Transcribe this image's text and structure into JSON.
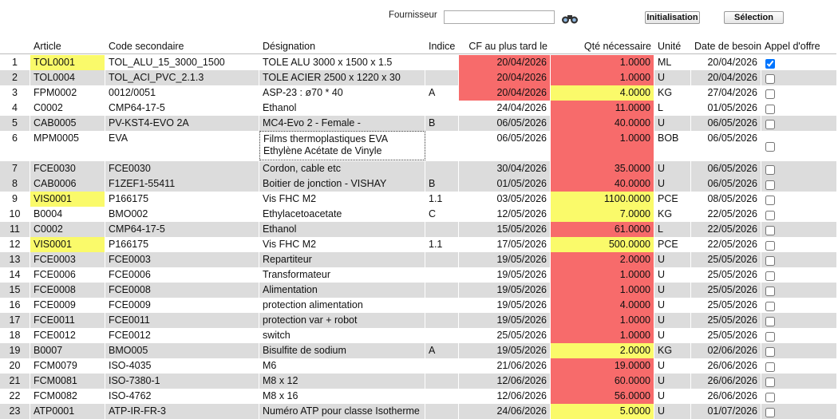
{
  "toolbar": {
    "supplier_label": "Fournisseur",
    "buttons": [
      "Initialisation",
      "Sélection"
    ]
  },
  "table": {
    "columns": [
      "Article",
      "Code secondaire",
      "Désignation",
      "Indice",
      "CF au plus tard le",
      "Qté nécessaire",
      "Unité",
      "Date de besoin",
      "Appel d'offre"
    ],
    "rows": [
      [
        "1",
        "TOL0001",
        "TOL_ALU_15_3000_1500",
        "TOLE ALU 3000 x 1500 x 1.5",
        null,
        "20/04/2026",
        "1.0000",
        "ML",
        "20/04/2026"
      ],
      [
        "2",
        "TOL0004",
        "TOL_ACI_PVC_2.1.3",
        "TOLE ACIER 2500 x 1220 x 30",
        null,
        "20/04/2026",
        "1.0000",
        "U",
        "20/04/2026"
      ],
      [
        "3",
        "FPM0002",
        "0012/0051",
        "ASP-23 : ø70 * 40",
        "A",
        "20/04/2026",
        "4.0000",
        "KG",
        "27/04/2026"
      ],
      [
        "4",
        "C0002",
        "CMP64-17-5",
        "Ethanol",
        null,
        "24/04/2026",
        "11.0000",
        "L",
        "01/05/2026"
      ],
      [
        "5",
        "CAB0005",
        "PV-KST4-EVO 2A",
        "MC4-Evo 2 - Female -",
        "B",
        "06/05/2026",
        "40.0000",
        "U",
        "06/05/2026"
      ],
      [
        "6",
        "MPM0005",
        "EVA",
        "Films thermoplastiques EVA\nEthylène Acétate de Vinyle",
        null,
        "06/05/2026",
        "1.0000",
        "BOB",
        "06/05/2026"
      ],
      [
        "7",
        "FCE0030",
        "FCE0030",
        "Cordon, cable etc",
        null,
        "30/04/2026",
        "35.0000",
        "U",
        "06/05/2026"
      ],
      [
        "8",
        "CAB0006",
        "F1ZEF1-55411",
        "Boitier de jonction - VISHAY",
        "B",
        "01/05/2026",
        "40.0000",
        "U",
        "06/05/2026"
      ],
      [
        "9",
        "VIS0001",
        "P166175",
        "Vis FHC M2",
        "1.1",
        "03/05/2026",
        "1100.0000",
        "PCE",
        "08/05/2026"
      ],
      [
        "10",
        "B0004",
        "BMO002",
        "Ethylacetoacetate",
        "C",
        "12/05/2026",
        "7.0000",
        "KG",
        "22/05/2026"
      ],
      [
        "11",
        "C0002",
        "CMP64-17-5",
        "Ethanol",
        null,
        "15/05/2026",
        "61.0000",
        "L",
        "22/05/2026"
      ],
      [
        "12",
        "VIS0001",
        "P166175",
        "Vis FHC M2",
        "1.1",
        "17/05/2026",
        "500.0000",
        "PCE",
        "22/05/2026"
      ],
      [
        "13",
        "FCE0003",
        "FCE0003",
        "Repartiteur",
        null,
        "19/05/2026",
        "2.0000",
        "U",
        "25/05/2026"
      ],
      [
        "14",
        "FCE0006",
        "FCE0006",
        "Transformateur",
        null,
        "19/05/2026",
        "1.0000",
        "U",
        "25/05/2026"
      ],
      [
        "15",
        "FCE0008",
        "FCE0008",
        "Alimentation",
        null,
        "19/05/2026",
        "1.0000",
        "U",
        "25/05/2026"
      ],
      [
        "16",
        "FCE0009",
        "FCE0009",
        "protection alimentation",
        null,
        "19/05/2026",
        "4.0000",
        "U",
        "25/05/2026"
      ],
      [
        "17",
        "FCE0011",
        "FCE0011",
        "protection var + robot",
        null,
        "19/05/2026",
        "1.0000",
        "U",
        "25/05/2026"
      ],
      [
        "18",
        "FCE0012",
        "FCE0012",
        "switch",
        null,
        "25/05/2026",
        "1.0000",
        "U",
        "25/05/2026"
      ],
      [
        "19",
        "B0007",
        "BMO005",
        "Bisulfite de sodium",
        "A",
        "19/05/2026",
        "2.0000",
        "KG",
        "02/06/2026"
      ],
      [
        "20",
        "FCM0079",
        "ISO-4035",
        "M6",
        null,
        "21/06/2026",
        "19.0000",
        "U",
        "26/06/2026"
      ],
      [
        "21",
        "FCM0081",
        "ISO-7380-1",
        "M8 x 12",
        null,
        "12/06/2026",
        "60.0000",
        "U",
        "26/06/2026"
      ],
      [
        "22",
        "FCM0082",
        "ISO-4762",
        "M8 x 16",
        null,
        "12/06/2026",
        "56.0000",
        "U",
        "26/06/2026"
      ],
      [
        "23",
        "ATP0001",
        "ATP-IR-FR-3",
        "Numéro ATP pour classe Isotherme",
        null,
        "24/06/2026",
        "5.0000",
        "U",
        "01/07/2026"
      ]
    ],
    "offer_requested": [
      true,
      false,
      false,
      false,
      false,
      false,
      false,
      false,
      false,
      false,
      false,
      false,
      false,
      false,
      false,
      false,
      false,
      false,
      false,
      false,
      false,
      false,
      false
    ]
  }
}
